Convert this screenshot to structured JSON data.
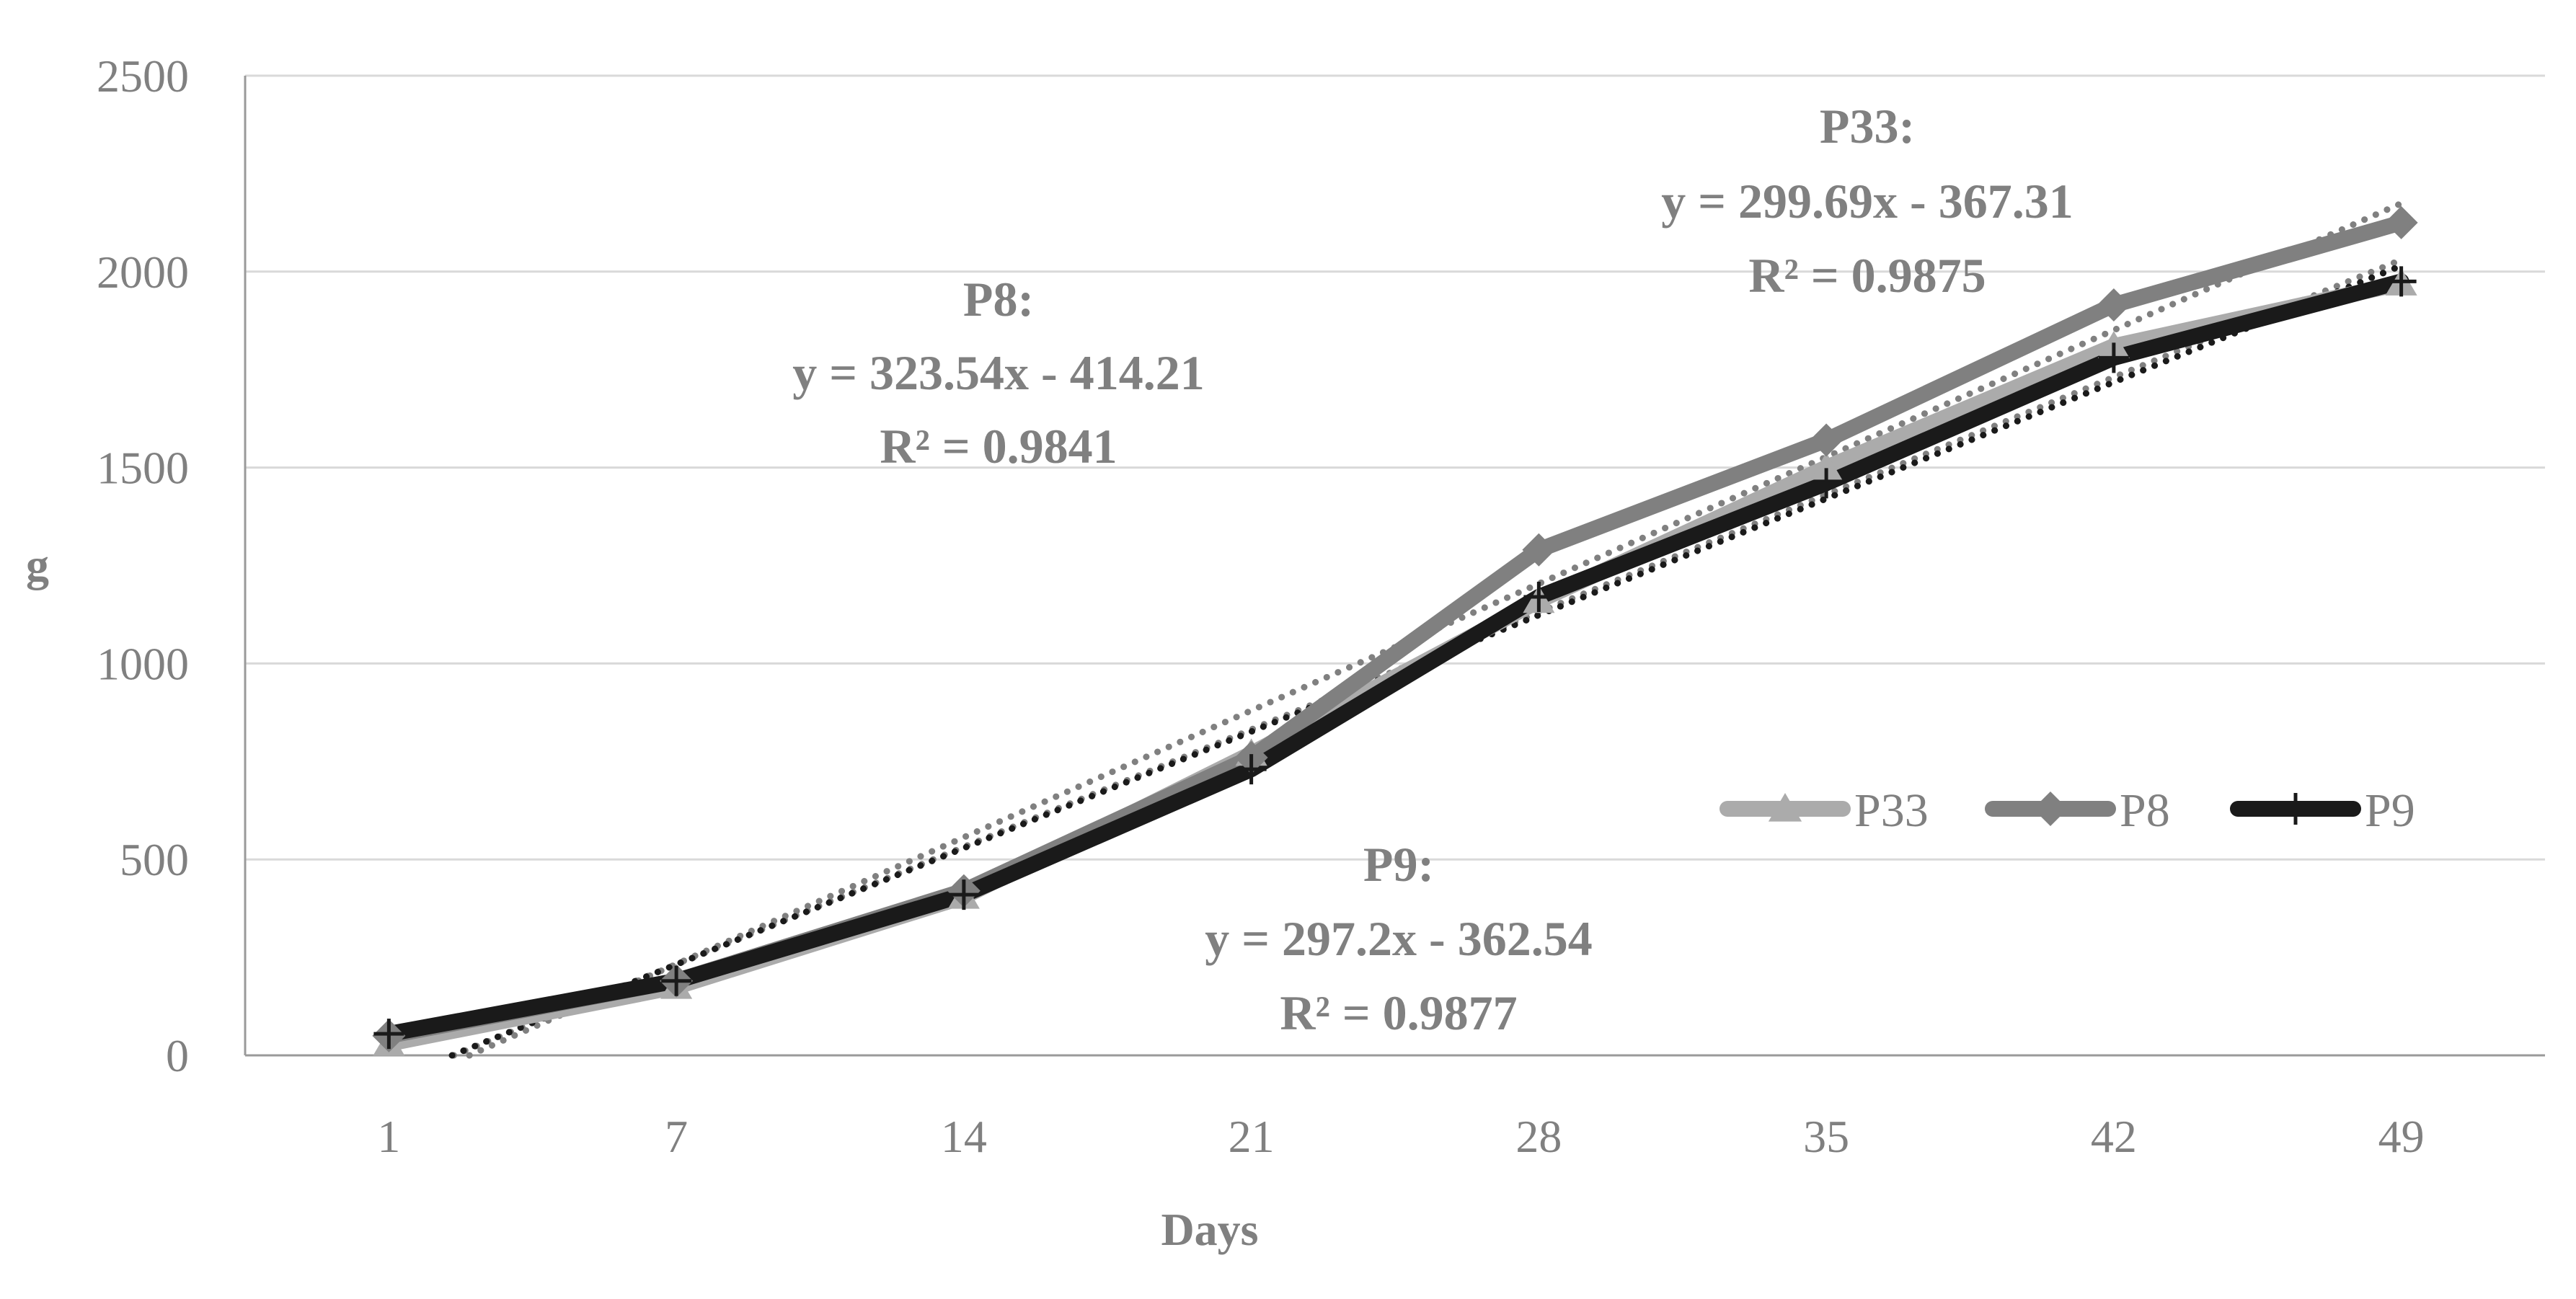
{
  "chart_data": {
    "type": "line",
    "title": "",
    "xlabel": "Days",
    "ylabel": "g",
    "categories": [
      "1",
      "7",
      "14",
      "21",
      "28",
      "35",
      "42",
      "49"
    ],
    "ylim": [
      0,
      2500
    ],
    "yticks": [
      "0",
      "500",
      "1000",
      "1500",
      "2000",
      "2500"
    ],
    "grid": true,
    "legend_position": "center-right",
    "series": [
      {
        "name": "P33",
        "color": "#ababab",
        "marker": "triangle",
        "values": [
          30,
          175,
          405,
          770,
          1160,
          1500,
          1810,
          1970
        ]
      },
      {
        "name": "P8",
        "color": "#808080",
        "marker": "diamond",
        "values": [
          50,
          190,
          420,
          760,
          1290,
          1570,
          1915,
          2125
        ]
      },
      {
        "name": "P9",
        "color": "#1a1a1a",
        "marker": "plus",
        "values": [
          55,
          190,
          410,
          730,
          1170,
          1460,
          1780,
          1975
        ]
      }
    ],
    "trendlines": [
      {
        "name": "P33 trend",
        "slope": 299.69,
        "intercept": -367.31,
        "color": "#808080"
      },
      {
        "name": "P8 trend",
        "slope": 323.54,
        "intercept": -414.21,
        "color": "#808080"
      },
      {
        "name": "P9 trend",
        "slope": 297.2,
        "intercept": -362.54,
        "color": "#1a1a1a"
      }
    ],
    "annotations": {
      "p33": {
        "label": "P33:",
        "equation": "y = 299.69x - 367.31",
        "r2": "R² = 0.9875"
      },
      "p8": {
        "label": "P8:",
        "equation": "y = 323.54x - 414.21",
        "r2": "R² = 0.9841"
      },
      "p9": {
        "label": "P9:",
        "equation": "y  = 297.2x - 362.54",
        "r2": "R² = 0.9877"
      }
    }
  }
}
